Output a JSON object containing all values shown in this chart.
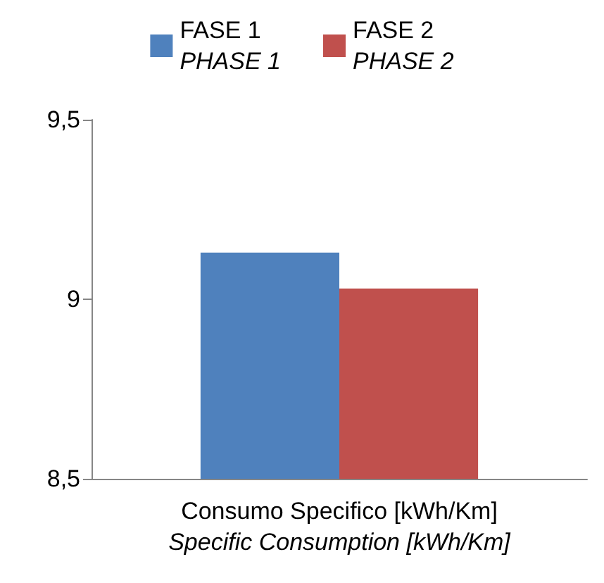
{
  "chart_data": {
    "type": "bar",
    "categories": [
      "Consumo Specifico [kWh/Km]\nSpecific Consumption [kWh/Km]"
    ],
    "series": [
      {
        "name": "FASE 1\nPHASE 1",
        "color": "#4f81bd",
        "values": [
          9.13
        ]
      },
      {
        "name": "FASE 2\nPHASE 2",
        "color": "#c0504d",
        "values": [
          9.03
        ]
      }
    ],
    "ylim": [
      8.5,
      9.5
    ],
    "yticks": [
      {
        "value": 8.5,
        "label": "8,5"
      },
      9,
      {
        "value": 9.5,
        "label": "9,5"
      }
    ],
    "grid": false,
    "legend": "top"
  }
}
